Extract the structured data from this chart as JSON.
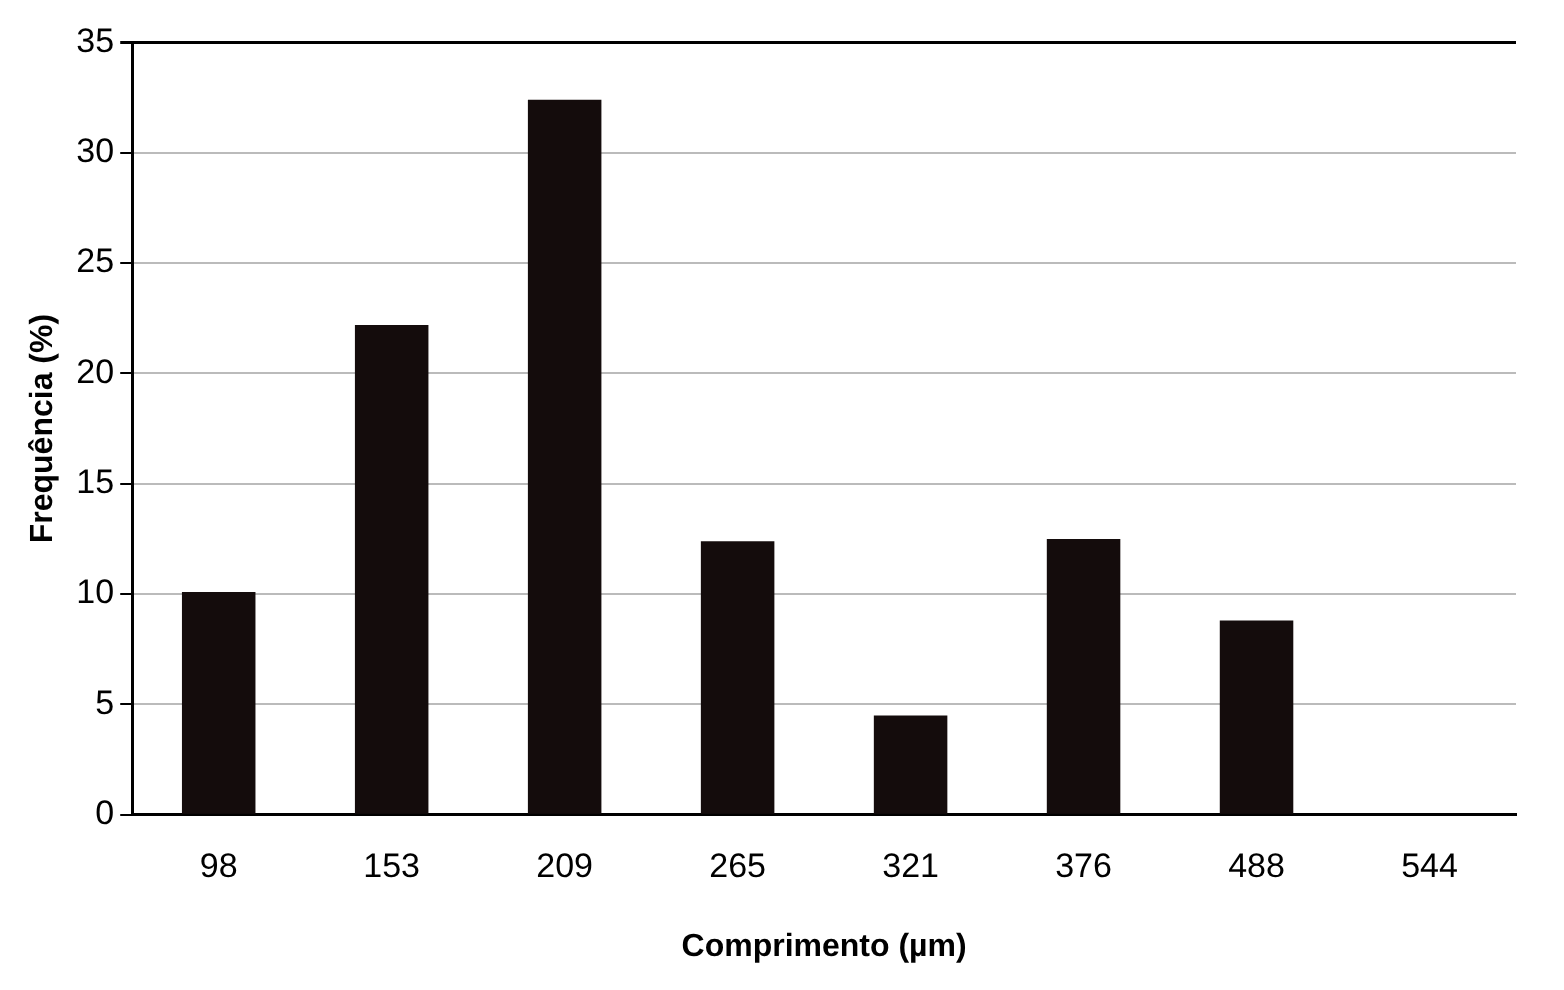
{
  "chart_data": {
    "type": "bar",
    "xlabel": "Comprimento (µm)",
    "ylabel": "Frequência (%)",
    "categories": [
      "98",
      "153",
      "209",
      "265",
      "321",
      "376",
      "488",
      "544"
    ],
    "values": [
      10.1,
      22.2,
      32.4,
      12.4,
      4.5,
      12.5,
      8.8,
      0
    ],
    "color": "#140c0c",
    "ylim": [
      0,
      35
    ],
    "yticks": [
      0,
      5,
      10,
      15,
      20,
      25,
      30,
      35
    ],
    "grid": "y",
    "legend": false
  }
}
